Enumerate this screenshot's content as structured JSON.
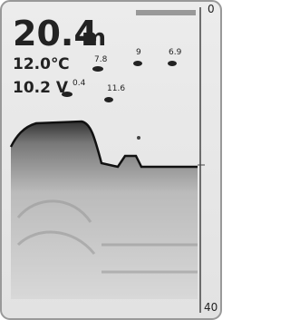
{
  "header": {
    "depth": "20.4",
    "depth_unit": "m",
    "temperature": "12.0℃",
    "voltage": "10.2 V"
  },
  "fish_labels": [
    "7.8",
    "9",
    "6.9",
    "0.4",
    "11.6"
  ],
  "scale": {
    "top": "0",
    "bottom": "40"
  }
}
